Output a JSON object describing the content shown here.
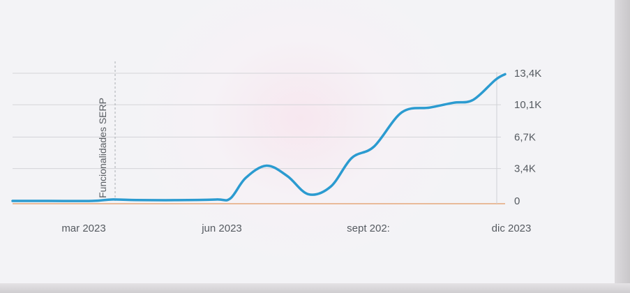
{
  "chart_data": {
    "type": "line",
    "x_ticks": [
      "mar 2023",
      "jun 2023",
      "sept 202:",
      "dic 2023"
    ],
    "y_ticks": [
      "0",
      "3,4K",
      "6,7K",
      "10,1K",
      "13,4K"
    ],
    "ylim": [
      0,
      13400
    ],
    "grid": true,
    "annotation": "Funcionalidades SERP",
    "series": [
      {
        "color": "#2b9bd0",
        "points": [
          {
            "x": "2023-01-15",
            "y": 0
          },
          {
            "x": "2023-02-15",
            "y": 0
          },
          {
            "x": "2023-03-01",
            "y": 150
          },
          {
            "x": "2023-03-15",
            "y": 100
          },
          {
            "x": "2023-04-15",
            "y": 80
          },
          {
            "x": "2023-05-15",
            "y": 150
          },
          {
            "x": "2023-05-25",
            "y": 250
          },
          {
            "x": "2023-06-05",
            "y": 2400
          },
          {
            "x": "2023-06-20",
            "y": 3700
          },
          {
            "x": "2023-07-05",
            "y": 2600
          },
          {
            "x": "2023-07-20",
            "y": 700
          },
          {
            "x": "2023-08-05",
            "y": 1500
          },
          {
            "x": "2023-08-20",
            "y": 4500
          },
          {
            "x": "2023-09-05",
            "y": 5700
          },
          {
            "x": "2023-09-25",
            "y": 9300
          },
          {
            "x": "2023-10-15",
            "y": 9800
          },
          {
            "x": "2023-11-01",
            "y": 10300
          },
          {
            "x": "2023-11-15",
            "y": 10600
          },
          {
            "x": "2023-12-01",
            "y": 12700
          },
          {
            "x": "2023-12-08",
            "y": 13300
          }
        ]
      }
    ]
  },
  "colors": {
    "line": "#2b9bd0",
    "baseline": "#e5a87a",
    "grid": "#d4d4d8",
    "text": "#555a60"
  }
}
